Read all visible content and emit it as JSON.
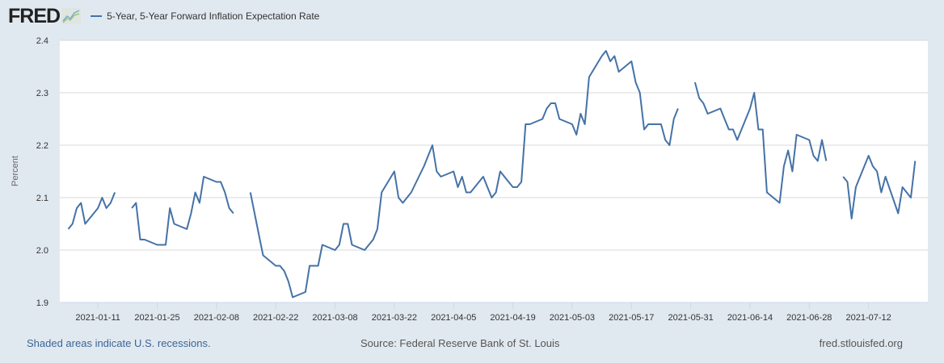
{
  "header": {
    "logo_text": "FRED",
    "logo_icon": "chart-line-icon",
    "legend_label": "5-Year, 5-Year Forward Inflation Expectation Rate"
  },
  "footer": {
    "recession_note": "Shaded areas indicate U.S. recessions.",
    "source": "Source: Federal Reserve Bank of St. Louis",
    "url": "fred.stlouisfed.org"
  },
  "colors": {
    "series": "#4572a7",
    "background": "#e1e9f0",
    "plot_background": "#ffffff",
    "grid": "#d8d8d8"
  },
  "chart_data": {
    "type": "line",
    "title": "5-Year, 5-Year Forward Inflation Expectation Rate",
    "xlabel": "",
    "ylabel": "Percent",
    "ylim": [
      1.9,
      2.4
    ],
    "xlim": [
      "2021-01-02",
      "2021-07-26"
    ],
    "yticks": [
      "1.9",
      "2.0",
      "2.1",
      "2.2",
      "2.3",
      "2.4"
    ],
    "xticks": [
      "2021-01-11",
      "2021-01-25",
      "2021-02-08",
      "2021-02-22",
      "2021-03-08",
      "2021-03-22",
      "2021-04-05",
      "2021-04-19",
      "2021-05-03",
      "2021-05-17",
      "2021-05-31",
      "2021-06-14",
      "2021-06-28",
      "2021-07-12"
    ],
    "grid": true,
    "legend": "top-left",
    "series": [
      {
        "name": "5-Year, 5-Year Forward Inflation Expectation Rate",
        "points": [
          [
            "2021-01-04",
            2.04
          ],
          [
            "2021-01-05",
            2.05
          ],
          [
            "2021-01-06",
            2.08
          ],
          [
            "2021-01-07",
            2.09
          ],
          [
            "2021-01-08",
            2.05
          ],
          [
            "2021-01-11",
            2.08
          ],
          [
            "2021-01-12",
            2.1
          ],
          [
            "2021-01-13",
            2.08
          ],
          [
            "2021-01-14",
            2.09
          ],
          [
            "2021-01-15",
            2.11
          ],
          [
            "2021-01-18",
            null
          ],
          [
            "2021-01-19",
            2.08
          ],
          [
            "2021-01-20",
            2.09
          ],
          [
            "2021-01-21",
            2.02
          ],
          [
            "2021-01-22",
            2.02
          ],
          [
            "2021-01-25",
            2.01
          ],
          [
            "2021-01-26",
            2.01
          ],
          [
            "2021-01-27",
            2.01
          ],
          [
            "2021-01-28",
            2.08
          ],
          [
            "2021-01-29",
            2.05
          ],
          [
            "2021-02-01",
            2.04
          ],
          [
            "2021-02-02",
            2.07
          ],
          [
            "2021-02-03",
            2.11
          ],
          [
            "2021-02-04",
            2.09
          ],
          [
            "2021-02-05",
            2.14
          ],
          [
            "2021-02-08",
            2.13
          ],
          [
            "2021-02-09",
            2.13
          ],
          [
            "2021-02-10",
            2.11
          ],
          [
            "2021-02-11",
            2.08
          ],
          [
            "2021-02-12",
            2.07
          ],
          [
            "2021-02-15",
            null
          ],
          [
            "2021-02-16",
            2.11
          ],
          [
            "2021-02-17",
            2.07
          ],
          [
            "2021-02-18",
            2.03
          ],
          [
            "2021-02-19",
            1.99
          ],
          [
            "2021-02-22",
            1.97
          ],
          [
            "2021-02-23",
            1.97
          ],
          [
            "2021-02-24",
            1.96
          ],
          [
            "2021-02-25",
            1.94
          ],
          [
            "2021-02-26",
            1.91
          ],
          [
            "2021-03-01",
            1.92
          ],
          [
            "2021-03-02",
            1.97
          ],
          [
            "2021-03-03",
            1.97
          ],
          [
            "2021-03-04",
            1.97
          ],
          [
            "2021-03-05",
            2.01
          ],
          [
            "2021-03-08",
            2.0
          ],
          [
            "2021-03-09",
            2.01
          ],
          [
            "2021-03-10",
            2.05
          ],
          [
            "2021-03-11",
            2.05
          ],
          [
            "2021-03-12",
            2.01
          ],
          [
            "2021-03-15",
            2.0
          ],
          [
            "2021-03-16",
            2.01
          ],
          [
            "2021-03-17",
            2.02
          ],
          [
            "2021-03-18",
            2.04
          ],
          [
            "2021-03-19",
            2.11
          ],
          [
            "2021-03-22",
            2.15
          ],
          [
            "2021-03-23",
            2.1
          ],
          [
            "2021-03-24",
            2.09
          ],
          [
            "2021-03-25",
            2.1
          ],
          [
            "2021-03-26",
            2.11
          ],
          [
            "2021-03-29",
            2.16
          ],
          [
            "2021-03-30",
            2.18
          ],
          [
            "2021-03-31",
            2.2
          ],
          [
            "2021-04-01",
            2.15
          ],
          [
            "2021-04-02",
            2.14
          ],
          [
            "2021-04-05",
            2.15
          ],
          [
            "2021-04-06",
            2.12
          ],
          [
            "2021-04-07",
            2.14
          ],
          [
            "2021-04-08",
            2.11
          ],
          [
            "2021-04-09",
            2.11
          ],
          [
            "2021-04-12",
            2.14
          ],
          [
            "2021-04-13",
            2.12
          ],
          [
            "2021-04-14",
            2.1
          ],
          [
            "2021-04-15",
            2.11
          ],
          [
            "2021-04-16",
            2.15
          ],
          [
            "2021-04-19",
            2.12
          ],
          [
            "2021-04-20",
            2.12
          ],
          [
            "2021-04-21",
            2.13
          ],
          [
            "2021-04-22",
            2.24
          ],
          [
            "2021-04-23",
            2.24
          ],
          [
            "2021-04-26",
            2.25
          ],
          [
            "2021-04-27",
            2.27
          ],
          [
            "2021-04-28",
            2.28
          ],
          [
            "2021-04-29",
            2.28
          ],
          [
            "2021-04-30",
            2.25
          ],
          [
            "2021-05-03",
            2.24
          ],
          [
            "2021-05-04",
            2.22
          ],
          [
            "2021-05-05",
            2.26
          ],
          [
            "2021-05-06",
            2.24
          ],
          [
            "2021-05-07",
            2.33
          ],
          [
            "2021-05-10",
            2.37
          ],
          [
            "2021-05-11",
            2.38
          ],
          [
            "2021-05-12",
            2.36
          ],
          [
            "2021-05-13",
            2.37
          ],
          [
            "2021-05-14",
            2.34
          ],
          [
            "2021-05-17",
            2.36
          ],
          [
            "2021-05-18",
            2.32
          ],
          [
            "2021-05-19",
            2.3
          ],
          [
            "2021-05-20",
            2.23
          ],
          [
            "2021-05-21",
            2.24
          ],
          [
            "2021-05-24",
            2.24
          ],
          [
            "2021-05-25",
            2.21
          ],
          [
            "2021-05-26",
            2.2
          ],
          [
            "2021-05-27",
            2.25
          ],
          [
            "2021-05-28",
            2.27
          ],
          [
            "2021-05-31",
            null
          ],
          [
            "2021-06-01",
            2.32
          ],
          [
            "2021-06-02",
            2.29
          ],
          [
            "2021-06-03",
            2.28
          ],
          [
            "2021-06-04",
            2.26
          ],
          [
            "2021-06-07",
            2.27
          ],
          [
            "2021-06-08",
            2.25
          ],
          [
            "2021-06-09",
            2.23
          ],
          [
            "2021-06-10",
            2.23
          ],
          [
            "2021-06-11",
            2.21
          ],
          [
            "2021-06-14",
            2.27
          ],
          [
            "2021-06-15",
            2.3
          ],
          [
            "2021-06-16",
            2.23
          ],
          [
            "2021-06-17",
            2.23
          ],
          [
            "2021-06-18",
            2.11
          ],
          [
            "2021-06-21",
            2.09
          ],
          [
            "2021-06-22",
            2.16
          ],
          [
            "2021-06-23",
            2.19
          ],
          [
            "2021-06-24",
            2.15
          ],
          [
            "2021-06-25",
            2.22
          ],
          [
            "2021-06-28",
            2.21
          ],
          [
            "2021-06-29",
            2.18
          ],
          [
            "2021-06-30",
            2.17
          ],
          [
            "2021-07-01",
            2.21
          ],
          [
            "2021-07-02",
            2.17
          ],
          [
            "2021-07-05",
            null
          ],
          [
            "2021-07-06",
            2.14
          ],
          [
            "2021-07-07",
            2.13
          ],
          [
            "2021-07-08",
            2.06
          ],
          [
            "2021-07-09",
            2.12
          ],
          [
            "2021-07-12",
            2.18
          ],
          [
            "2021-07-13",
            2.16
          ],
          [
            "2021-07-14",
            2.15
          ],
          [
            "2021-07-15",
            2.11
          ],
          [
            "2021-07-16",
            2.14
          ],
          [
            "2021-07-19",
            2.07
          ],
          [
            "2021-07-20",
            2.12
          ],
          [
            "2021-07-21",
            2.11
          ],
          [
            "2021-07-22",
            2.1
          ],
          [
            "2021-07-23",
            2.17
          ]
        ]
      }
    ]
  }
}
